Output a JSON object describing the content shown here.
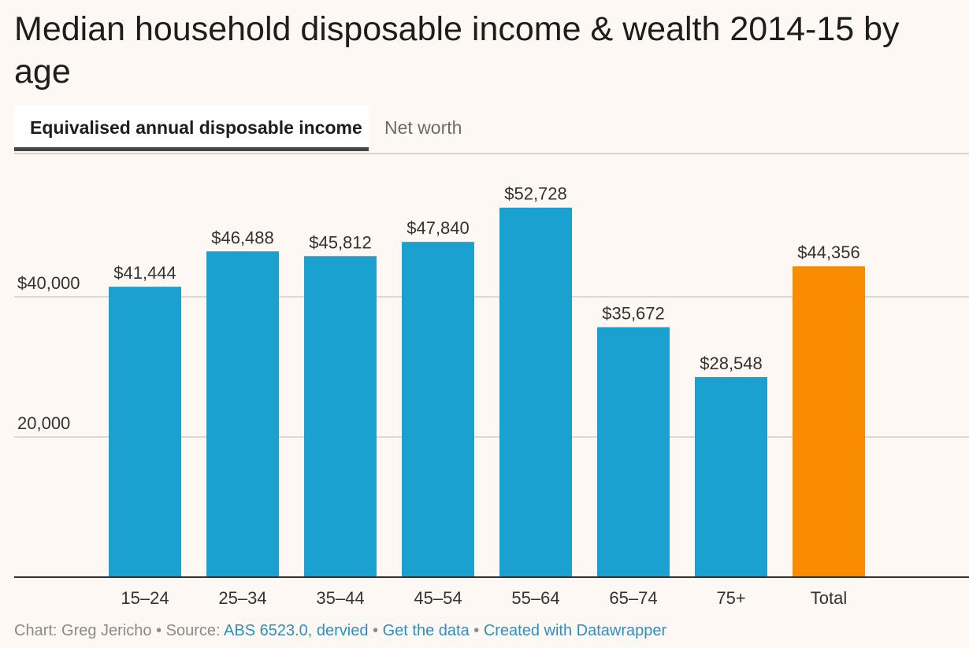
{
  "title": "Median household disposable income & wealth 2014-15 by age",
  "tabs": [
    {
      "label": "Equivalised annual disposable income",
      "active": true
    },
    {
      "label": "Net worth",
      "active": false
    }
  ],
  "colors": {
    "bar": "#1aa1cf",
    "highlight": "#f98c00",
    "grid": "#d0d0d0",
    "axis": "#333333"
  },
  "chart_data": {
    "type": "bar",
    "title": "Equivalised annual disposable income",
    "categories": [
      "15–24",
      "25–34",
      "35–44",
      "45–54",
      "55–64",
      "65–74",
      "75+",
      "Total"
    ],
    "values": [
      41444,
      46488,
      45812,
      47840,
      52728,
      35672,
      28548,
      44356
    ],
    "value_labels": [
      "$41,444",
      "$46,488",
      "$45,812",
      "$47,840",
      "$52,728",
      "$35,672",
      "$28,548",
      "$44,356"
    ],
    "highlight": [
      false,
      false,
      false,
      false,
      false,
      false,
      false,
      true
    ],
    "yticks": [
      {
        "value": 20000,
        "label": "20,000"
      },
      {
        "value": 40000,
        "label": "$40,000"
      }
    ],
    "ylim": [
      0,
      55000
    ],
    "xlabel": "",
    "ylabel": "",
    "grid": true,
    "legend": "none"
  },
  "footer": {
    "prefix": "Chart: Greg Jericho • Source: ",
    "source_link": "ABS 6523.0, dervied",
    "sep1": " • ",
    "data_link": "Get the data",
    "sep2": " • ",
    "credit_link": "Created with Datawrapper"
  }
}
